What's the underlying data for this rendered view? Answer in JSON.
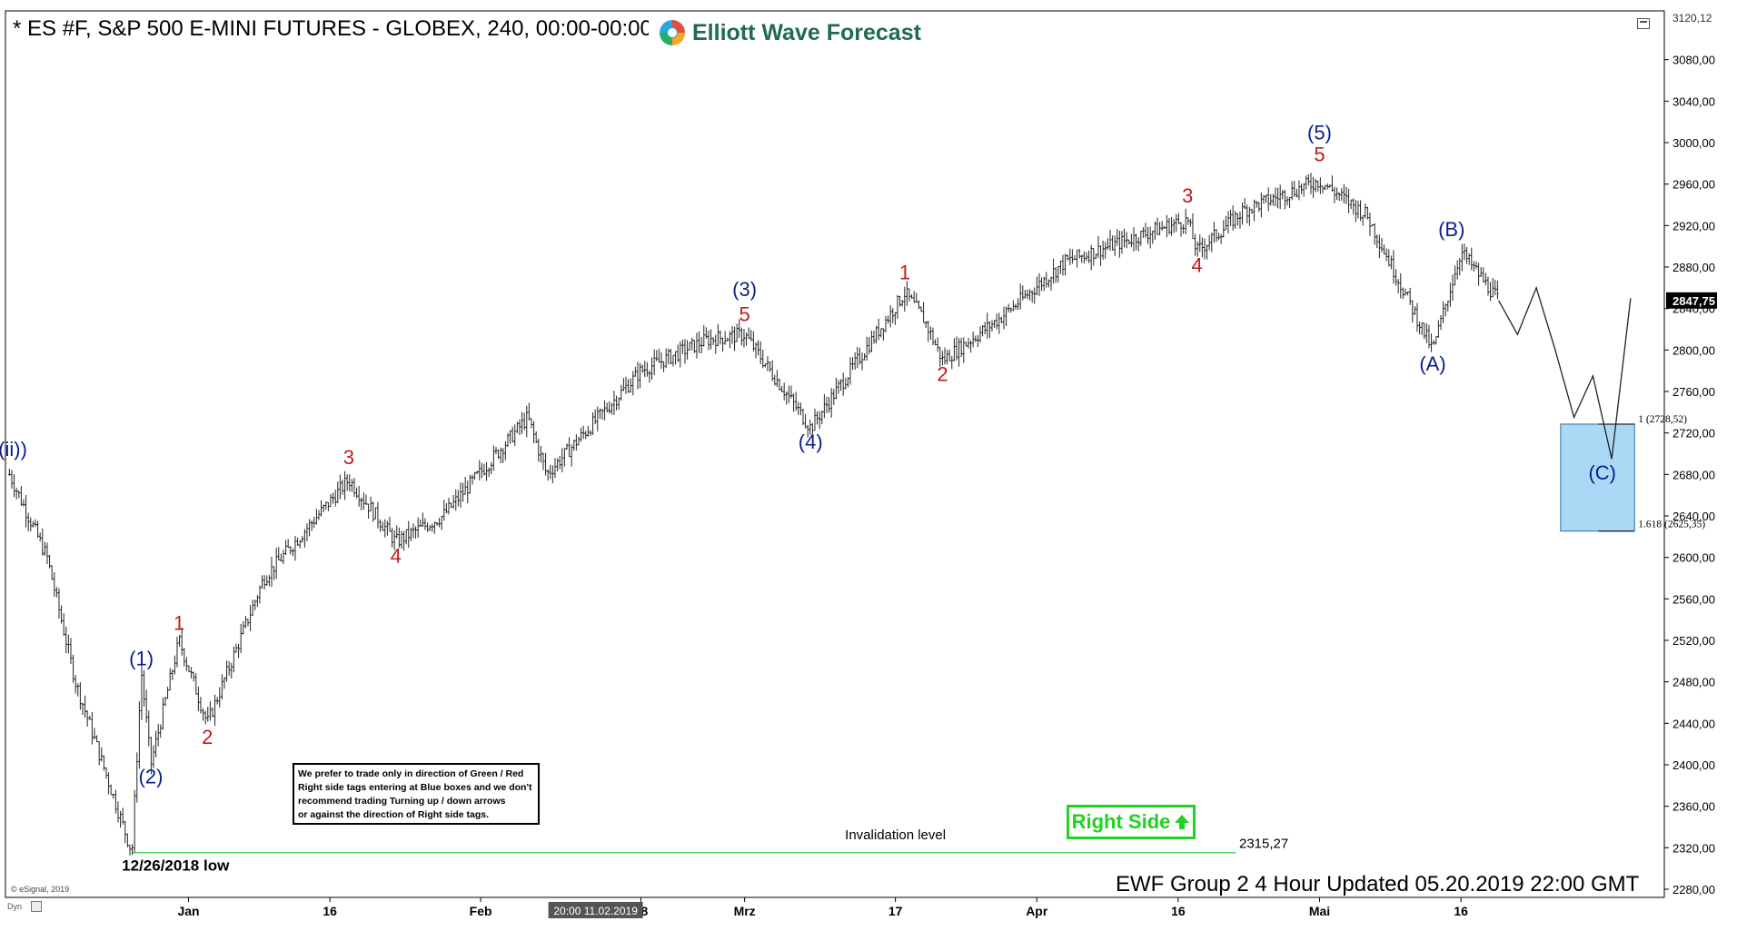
{
  "header": {
    "title": "* ES #F, S&P 500 E-MINI FUTURES - GLOBEX, 240, 00:00-00:00",
    "logo_text": "Elliott Wave Forecast",
    "logo_icon": "ewf-swirl-icon"
  },
  "footer": {
    "update_text": "EWF Group 2 4 Hour Updated 05.20.2019 22:00 GMT",
    "copyright": "© eSignal, 2019",
    "dyn_label": "Dyn"
  },
  "note": {
    "lines": [
      "We prefer to trade only in direction of Green / Red",
      "Right side tags entering at Blue boxes and we don't",
      "recommend trading Turning up / down arrows",
      "or against the direction of Right side tags."
    ]
  },
  "right_side_tag": {
    "label": "Right Side",
    "color": "#1ed41e",
    "icon": "arrow-up-icon"
  },
  "chart_data": {
    "type": "line",
    "style": "ohlc-bars",
    "instrument": "ES #F S&P 500 E-MINI FUTURES",
    "timeframe": "240",
    "ylim": [
      2280,
      3120
    ],
    "y_ticks": [
      2280,
      2320,
      2360,
      2400,
      2440,
      2480,
      2520,
      2560,
      2600,
      2640,
      2680,
      2720,
      2760,
      2800,
      2840,
      2880,
      2920,
      2960,
      3000,
      3040,
      3080
    ],
    "y_tick_labels": [
      "2280,00",
      "2320,00",
      "2360,00",
      "2400,00",
      "2440,00",
      "2480,00",
      "2520,00",
      "2560,00",
      "2600,00",
      "2640,00",
      "2680,00",
      "2720,00",
      "2760,00",
      "2800,00",
      "2840,00",
      "2880,00",
      "2920,00",
      "2960,00",
      "3000,00",
      "3040,00",
      "3080,00"
    ],
    "y_top_label": "3120,12",
    "last_price_label": "2847,75",
    "last_price": 2847.75,
    "x_tick_labels": [
      {
        "label": "Jan",
        "date": "2019-01-01"
      },
      {
        "label": "16",
        "date": "2019-01-16"
      },
      {
        "label": "Feb",
        "date": "2019-02-01"
      },
      {
        "label": "18",
        "date": "2019-02-18"
      },
      {
        "label": "Mrz",
        "date": "2019-03-01"
      },
      {
        "label": "17",
        "date": "2019-03-17"
      },
      {
        "label": "Apr",
        "date": "2019-04-01"
      },
      {
        "label": "16",
        "date": "2019-04-16"
      },
      {
        "label": "Mai",
        "date": "2019-05-01"
      },
      {
        "label": "16",
        "date": "2019-05-16"
      }
    ],
    "cursor_time_label": "20:00 11.02.2019",
    "price_path": [
      {
        "date": "2018-12-13",
        "price": 2680
      },
      {
        "date": "2018-12-17",
        "price": 2600
      },
      {
        "date": "2018-12-20",
        "price": 2480
      },
      {
        "date": "2018-12-26",
        "price": 2315.27
      },
      {
        "date": "2018-12-27",
        "price": 2490
      },
      {
        "date": "2018-12-28",
        "price": 2400
      },
      {
        "date": "2018-12-31",
        "price": 2520
      },
      {
        "date": "2019-01-03",
        "price": 2440
      },
      {
        "date": "2019-01-09",
        "price": 2580
      },
      {
        "date": "2019-01-18",
        "price": 2675
      },
      {
        "date": "2019-01-23",
        "price": 2615
      },
      {
        "date": "2019-01-28",
        "price": 2640
      },
      {
        "date": "2019-02-06",
        "price": 2735
      },
      {
        "date": "2019-02-08",
        "price": 2680
      },
      {
        "date": "2019-02-18",
        "price": 2780
      },
      {
        "date": "2019-02-25",
        "price": 2810
      },
      {
        "date": "2019-03-01",
        "price": 2815
      },
      {
        "date": "2019-03-08",
        "price": 2725
      },
      {
        "date": "2019-03-18",
        "price": 2855
      },
      {
        "date": "2019-03-20",
        "price": 2830
      },
      {
        "date": "2019-03-22",
        "price": 2790
      },
      {
        "date": "2019-03-28",
        "price": 2830
      },
      {
        "date": "2019-04-04",
        "price": 2885
      },
      {
        "date": "2019-04-15",
        "price": 2920
      },
      {
        "date": "2019-04-17",
        "price": 2925
      },
      {
        "date": "2019-04-18",
        "price": 2895
      },
      {
        "date": "2019-04-23",
        "price": 2935
      },
      {
        "date": "2019-04-30",
        "price": 2960
      },
      {
        "date": "2019-05-01",
        "price": 2963
      },
      {
        "date": "2019-05-06",
        "price": 2930
      },
      {
        "date": "2019-05-13",
        "price": 2800
      },
      {
        "date": "2019-05-16",
        "price": 2895
      },
      {
        "date": "2019-05-20",
        "price": 2847.75
      }
    ],
    "projection_path": [
      {
        "date": "2019-05-20",
        "price": 2847.75
      },
      {
        "date": "2019-05-22",
        "price": 2815
      },
      {
        "date": "2019-05-24",
        "price": 2860
      },
      {
        "date": "2019-05-26",
        "price": 2800
      },
      {
        "date": "2019-05-28",
        "price": 2735
      },
      {
        "date": "2019-05-30",
        "price": 2775
      },
      {
        "date": "2019-06-01",
        "price": 2695
      },
      {
        "date": "2019-06-03",
        "price": 2850
      }
    ],
    "wave_labels": [
      {
        "text": "((ii))",
        "date": "2018-12-13",
        "price": 2698,
        "color": "#0b1e8c"
      },
      {
        "text": "(1)",
        "date": "2018-12-27",
        "price": 2496,
        "color": "#0b1e8c"
      },
      {
        "text": "(2)",
        "date": "2018-12-28",
        "price": 2382,
        "color": "#0b1e8c"
      },
      {
        "text": "(3)",
        "date": "2019-03-01",
        "price": 2852,
        "color": "#0b1e8c"
      },
      {
        "text": "(4)",
        "date": "2019-03-08",
        "price": 2705,
        "color": "#0b1e8c"
      },
      {
        "text": "(5)",
        "date": "2019-05-01",
        "price": 3003,
        "color": "#0b1e8c"
      },
      {
        "text": "(A)",
        "date": "2019-05-13",
        "price": 2780,
        "color": "#0b1e8c"
      },
      {
        "text": "(B)",
        "date": "2019-05-15",
        "price": 2910,
        "color": "#0b1e8c"
      },
      {
        "text": "(C)",
        "date": "2019-05-31",
        "price": 2675,
        "color": "#0b1e8c"
      },
      {
        "text": "1",
        "date": "2018-12-31",
        "price": 2530,
        "color": "#c0191b"
      },
      {
        "text": "2",
        "date": "2019-01-03",
        "price": 2420,
        "color": "#c0191b"
      },
      {
        "text": "3",
        "date": "2019-01-18",
        "price": 2690,
        "color": "#c0191b"
      },
      {
        "text": "4",
        "date": "2019-01-23",
        "price": 2595,
        "color": "#c0191b"
      },
      {
        "text": "5",
        "date": "2019-03-01",
        "price": 2828,
        "color": "#c0191b"
      },
      {
        "text": "1",
        "date": "2019-03-18",
        "price": 2868,
        "color": "#c0191b"
      },
      {
        "text": "2",
        "date": "2019-03-22",
        "price": 2770,
        "color": "#c0191b"
      },
      {
        "text": "3",
        "date": "2019-04-17",
        "price": 2942,
        "color": "#c0191b"
      },
      {
        "text": "4",
        "date": "2019-04-18",
        "price": 2875,
        "color": "#c0191b"
      },
      {
        "text": "5",
        "date": "2019-05-01",
        "price": 2982,
        "color": "#c0191b"
      }
    ],
    "annotations": [
      {
        "text": "12/26/2018 low",
        "date": "2018-12-26",
        "price": 2298
      },
      {
        "text": "Invalidation level",
        "date": "2019-03-17",
        "price": 2328
      }
    ],
    "invalidation": {
      "value": 2315.27,
      "label": "2315,27",
      "color": "#2ecc40"
    },
    "target_box": {
      "top": 2728.52,
      "bottom": 2625.35,
      "start_date": "2019-05-26",
      "end_date": "2019-06-04",
      "color": "#aad8f5",
      "top_label": "1 (2728,52)",
      "bottom_label": "1.618 (2625,35)"
    },
    "grid": false,
    "axis_side": "right"
  }
}
